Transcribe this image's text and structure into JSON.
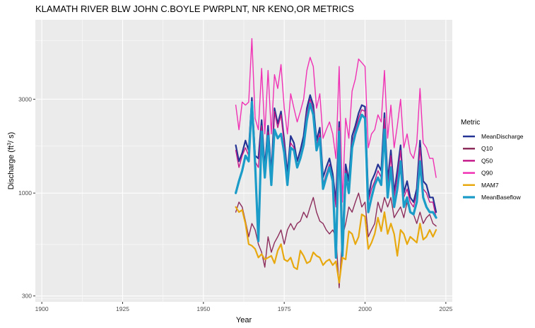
{
  "chart_data": {
    "type": "line",
    "title": "KLAMATH RIVER BLW JOHN C.BOYLE PWRPLNT, NR KENO,OR  METRICS",
    "xlabel": "Year",
    "ylabel_main": "Discharge (ft",
    "ylabel_sup": "3",
    "ylabel_rest": "/ s)",
    "y_scale": "log",
    "xlim": [
      1898,
      2027
    ],
    "ylim": [
      280,
      7600
    ],
    "x_ticks": [
      1900,
      1925,
      1950,
      1975,
      2000,
      2025
    ],
    "x_tick_labels": [
      "1900",
      "1925",
      "1950",
      "1975",
      "2000",
      "2025"
    ],
    "y_ticks": [
      300,
      1000,
      3000
    ],
    "y_tick_labels": [
      "300",
      "1000",
      "3000"
    ],
    "legend": {
      "title": "Metric",
      "position": "right"
    },
    "series": [
      {
        "name": "MeanDischarge",
        "color": "#253494",
        "width": 2.2,
        "x": [
          1960,
          1961,
          1962,
          1963,
          1964,
          1965,
          1966,
          1967,
          1968,
          1969,
          1970,
          1971,
          1972,
          1973,
          1974,
          1975,
          1976,
          1977,
          1978,
          1979,
          1980,
          1981,
          1982,
          1983,
          1984,
          1985,
          1986,
          1987,
          1988,
          1989,
          1990,
          1991,
          1992,
          1993,
          1994,
          1995,
          1996,
          1997,
          1998,
          1999,
          2000,
          2001,
          2002,
          2003,
          2004,
          2005,
          2006,
          2007,
          2008,
          2009,
          2010,
          2011,
          2012,
          2013,
          2014,
          2015,
          2016,
          2017,
          2018,
          2019,
          2020,
          2021,
          2022
        ],
        "y": [
          1750,
          1450,
          1600,
          1850,
          1650,
          3050,
          1550,
          1500,
          2350,
          1350,
          2200,
          1250,
          2700,
          2250,
          2600,
          1850,
          1250,
          1950,
          1800,
          1450,
          1650,
          1950,
          2700,
          3150,
          2800,
          1850,
          2150,
          1200,
          1350,
          1500,
          1250,
          900,
          2300,
          550,
          1400,
          1150,
          1950,
          2200,
          2550,
          2800,
          2750,
          950,
          1150,
          1250,
          1400,
          1300,
          2550,
          1150,
          1650,
          1000,
          1300,
          1750,
          1000,
          1150,
          950,
          900,
          1050,
          1850,
          1150,
          1100,
          950,
          950,
          800
        ]
      },
      {
        "name": "Q10",
        "color": "#8c2d5c",
        "width": 1.4,
        "x": [
          1960,
          1961,
          1962,
          1963,
          1964,
          1965,
          1966,
          1967,
          1968,
          1969,
          1970,
          1971,
          1972,
          1973,
          1974,
          1975,
          1976,
          1977,
          1978,
          1979,
          1980,
          1981,
          1982,
          1983,
          1984,
          1985,
          1986,
          1987,
          1988,
          1989,
          1990,
          1991,
          1992,
          1993,
          1994,
          1995,
          1996,
          1997,
          1998,
          1999,
          2000,
          2001,
          2002,
          2003,
          2004,
          2005,
          2006,
          2007,
          2008,
          2009,
          2010,
          2011,
          2012,
          2013,
          2014,
          2015,
          2016,
          2017,
          2018,
          2019,
          2020,
          2021,
          2022
        ],
        "y": [
          800,
          900,
          850,
          720,
          600,
          700,
          650,
          550,
          500,
          420,
          600,
          500,
          560,
          600,
          650,
          550,
          650,
          700,
          650,
          700,
          720,
          800,
          750,
          850,
          950,
          800,
          720,
          700,
          650,
          620,
          650,
          600,
          330,
          600,
          700,
          850,
          800,
          900,
          1000,
          850,
          900,
          600,
          650,
          700,
          900,
          800,
          950,
          850,
          950,
          750,
          800,
          850,
          750,
          900,
          800,
          780,
          700,
          800,
          700,
          750,
          780,
          700,
          680
        ]
      },
      {
        "name": "Q50",
        "color": "#c51b8a",
        "width": 1.4,
        "x": [
          1960,
          1961,
          1962,
          1963,
          1964,
          1965,
          1966,
          1967,
          1968,
          1969,
          1970,
          1971,
          1972,
          1973,
          1974,
          1975,
          1976,
          1977,
          1978,
          1979,
          1980,
          1981,
          1982,
          1983,
          1984,
          1985,
          1986,
          1987,
          1988,
          1989,
          1990,
          1991,
          1992,
          1993,
          1994,
          1995,
          1996,
          1997,
          1998,
          1999,
          2000,
          2001,
          2002,
          2003,
          2004,
          2005,
          2006,
          2007,
          2008,
          2009,
          2010,
          2011,
          2012,
          2013,
          2014,
          2015,
          2016,
          2017,
          2018,
          2019,
          2020,
          2021,
          2022
        ],
        "y": [
          1650,
          1350,
          1550,
          1700,
          1550,
          2900,
          1450,
          1350,
          2200,
          1250,
          2050,
          1150,
          2600,
          2150,
          2500,
          1750,
          1150,
          1800,
          1700,
          1350,
          1550,
          1800,
          2550,
          3000,
          2650,
          1750,
          2000,
          1100,
          1250,
          1400,
          1150,
          850,
          2150,
          500,
          1300,
          1050,
          1800,
          2100,
          2400,
          2650,
          2600,
          900,
          1050,
          1150,
          1300,
          1200,
          2400,
          1050,
          1550,
          950,
          1200,
          1650,
          950,
          1050,
          900,
          850,
          1000,
          1700,
          1050,
          1000,
          900,
          900,
          750
        ]
      },
      {
        "name": "Q90",
        "color": "#f031b4",
        "width": 1.4,
        "x": [
          1960,
          1961,
          1962,
          1963,
          1964,
          1965,
          1966,
          1967,
          1968,
          1969,
          1970,
          1971,
          1972,
          1973,
          1974,
          1975,
          1976,
          1977,
          1978,
          1979,
          1980,
          1981,
          1982,
          1983,
          1984,
          1985,
          1986,
          1987,
          1988,
          1989,
          1990,
          1991,
          1992,
          1993,
          1994,
          1995,
          1996,
          1997,
          1998,
          1999,
          2000,
          2001,
          2002,
          2003,
          2004,
          2005,
          2006,
          2007,
          2008,
          2009,
          2010,
          2011,
          2012,
          2013,
          2014,
          2015,
          2016,
          2017,
          2018,
          2019,
          2020,
          2021,
          2022
        ],
        "y": [
          2800,
          2100,
          2900,
          2800,
          2900,
          6100,
          2400,
          2100,
          4300,
          2000,
          4200,
          2000,
          4000,
          3400,
          4500,
          2700,
          2000,
          3200,
          2700,
          2300,
          2600,
          3000,
          4200,
          4900,
          4400,
          2700,
          3200,
          1900,
          2100,
          2300,
          2000,
          1500,
          4400,
          900,
          2400,
          1900,
          3300,
          3800,
          4800,
          4600,
          4400,
          1700,
          2000,
          2100,
          2500,
          2300,
          4200,
          1900,
          2800,
          1700,
          2200,
          3000,
          1700,
          2000,
          1600,
          1500,
          1800,
          3400,
          1800,
          1700,
          1500,
          1500,
          1200
        ]
      },
      {
        "name": "MAM7",
        "color": "#e8a910",
        "width": 2.2,
        "x": [
          1960,
          1961,
          1962,
          1963,
          1964,
          1965,
          1966,
          1967,
          1968,
          1969,
          1970,
          1971,
          1972,
          1973,
          1974,
          1975,
          1976,
          1977,
          1978,
          1979,
          1980,
          1981,
          1982,
          1983,
          1984,
          1985,
          1986,
          1987,
          1988,
          1989,
          1990,
          1991,
          1992,
          1993,
          1994,
          1995,
          1996,
          1997,
          1998,
          1999,
          2000,
          2001,
          2002,
          2003,
          2004,
          2005,
          2006,
          2007,
          2008,
          2009,
          2010,
          2011,
          2012,
          2013,
          2014,
          2015,
          2016,
          2017,
          2018,
          2019,
          2020,
          2021,
          2022
        ],
        "y": [
          850,
          800,
          820,
          700,
          550,
          540,
          520,
          470,
          490,
          460,
          470,
          480,
          440,
          510,
          550,
          460,
          450,
          470,
          420,
          410,
          510,
          480,
          440,
          450,
          500,
          480,
          470,
          430,
          450,
          460,
          430,
          450,
          350,
          470,
          460,
          640,
          620,
          550,
          600,
          780,
          760,
          520,
          560,
          620,
          750,
          640,
          800,
          620,
          700,
          620,
          480,
          650,
          620,
          550,
          600,
          580,
          560,
          700,
          580,
          600,
          650,
          600,
          650
        ]
      },
      {
        "name": "MeanBaseflow",
        "color": "#1b9cc8",
        "width": 3.2,
        "x": [
          1960,
          1961,
          1962,
          1963,
          1964,
          1965,
          1966,
          1967,
          1968,
          1969,
          1970,
          1971,
          1972,
          1973,
          1974,
          1975,
          1976,
          1977,
          1978,
          1979,
          1980,
          1981,
          1982,
          1983,
          1984,
          1985,
          1986,
          1987,
          1988,
          1989,
          1990,
          1991,
          1992,
          1993,
          1994,
          1995,
          1996,
          1997,
          1998,
          1999,
          2000,
          2001,
          2002,
          2003,
          2004,
          2005,
          2006,
          2007,
          2008,
          2009,
          2010,
          2011,
          2012,
          2013,
          2014,
          2015,
          2016,
          2017,
          2018,
          2019,
          2020,
          2021,
          2022
        ],
        "y": [
          1000,
          1150,
          1300,
          1550,
          1450,
          2900,
          1400,
          570,
          2050,
          1200,
          1950,
          1100,
          2100,
          1900,
          2000,
          1600,
          1100,
          1700,
          1650,
          1350,
          1500,
          1750,
          2350,
          2850,
          2500,
          1650,
          1900,
          1050,
          1200,
          1350,
          1150,
          470,
          2050,
          480,
          1250,
          1000,
          1700,
          2000,
          2250,
          2500,
          2400,
          800,
          950,
          1100,
          1200,
          1100,
          2100,
          950,
          1350,
          850,
          1050,
          1450,
          850,
          950,
          800,
          780,
          900,
          1450,
          950,
          850,
          800,
          800,
          750
        ]
      }
    ]
  }
}
